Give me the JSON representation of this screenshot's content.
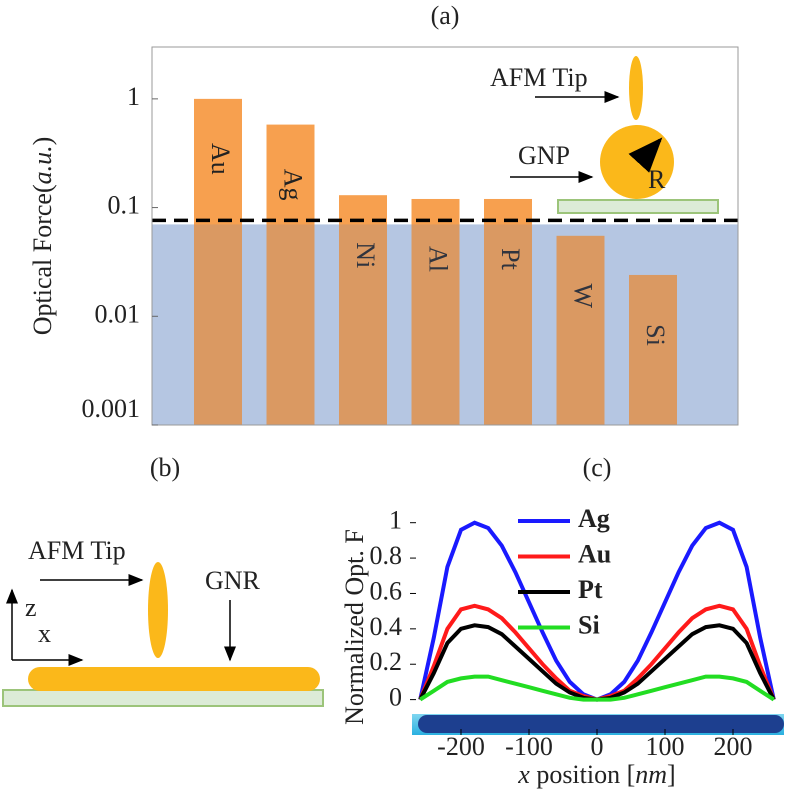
{
  "chart_data": [
    {
      "type": "bar",
      "title": "(a)",
      "y_label": [
        "Optical Force(",
        "a.u.",
        ")"
      ],
      "log_y": true,
      "categories": [
        "Au",
        "Ag",
        "Ni",
        "Al",
        "Pt",
        "W",
        "Si"
      ],
      "values": [
        1,
        0.58,
        0.13,
        0.12,
        0.12,
        0.055,
        0.024
      ],
      "color": "#f7a04f",
      "threshold": 0.07,
      "threshold_color": "#c9d9ef",
      "ylim": [
        0.001,
        3
      ],
      "yticks": [
        1,
        0.1,
        0.01,
        0.001
      ],
      "annotations": [
        "AFM Tip",
        "GNP",
        "R"
      ]
    },
    {
      "type": "line",
      "title": "(c)",
      "y_label": "Normalized Opt. F",
      "x_label": [
        "x",
        " position [",
        "nm",
        "]"
      ],
      "x": [
        -260,
        -240,
        -220,
        -200,
        -180,
        -160,
        -140,
        -120,
        -100,
        -80,
        -60,
        -40,
        -20,
        0,
        20,
        40,
        60,
        80,
        100,
        120,
        140,
        160,
        180,
        200,
        220,
        240,
        260
      ],
      "series": [
        {
          "name": "Ag",
          "color": "#1a1aff",
          "values": [
            0,
            0.35,
            0.75,
            0.96,
            1.0,
            0.97,
            0.87,
            0.72,
            0.55,
            0.38,
            0.22,
            0.1,
            0.03,
            0,
            0.03,
            0.1,
            0.22,
            0.38,
            0.55,
            0.72,
            0.87,
            0.97,
            1.0,
            0.96,
            0.75,
            0.35,
            0
          ]
        },
        {
          "name": "Au",
          "color": "#ff1a1a",
          "values": [
            0,
            0.19,
            0.4,
            0.51,
            0.53,
            0.51,
            0.46,
            0.38,
            0.29,
            0.2,
            0.12,
            0.05,
            0.02,
            0,
            0.02,
            0.05,
            0.12,
            0.2,
            0.29,
            0.38,
            0.46,
            0.51,
            0.53,
            0.51,
            0.4,
            0.19,
            0
          ]
        },
        {
          "name": "Pt",
          "color": "#000000",
          "values": [
            0,
            0.15,
            0.32,
            0.4,
            0.42,
            0.41,
            0.37,
            0.3,
            0.23,
            0.16,
            0.09,
            0.04,
            0.01,
            0,
            0.01,
            0.04,
            0.09,
            0.16,
            0.23,
            0.3,
            0.37,
            0.41,
            0.42,
            0.4,
            0.32,
            0.15,
            0
          ]
        },
        {
          "name": "Si",
          "color": "#22dd22",
          "values": [
            0,
            0.05,
            0.1,
            0.12,
            0.13,
            0.13,
            0.11,
            0.09,
            0.07,
            0.05,
            0.03,
            0.01,
            0,
            0,
            0,
            0.01,
            0.03,
            0.05,
            0.07,
            0.09,
            0.11,
            0.13,
            0.13,
            0.12,
            0.1,
            0.05,
            0
          ]
        }
      ],
      "xlim": [
        -275,
        275
      ],
      "ylim": [
        -0.2,
        1.1
      ],
      "xticks": [
        -200,
        -100,
        0,
        100,
        200
      ],
      "yticks": [
        0,
        0.2,
        0.4,
        0.6,
        0.8,
        1
      ]
    }
  ],
  "panel_b": {
    "label": "(b)",
    "tip": "AFM Tip",
    "rod": "GNR",
    "z": "z",
    "x": "x"
  }
}
